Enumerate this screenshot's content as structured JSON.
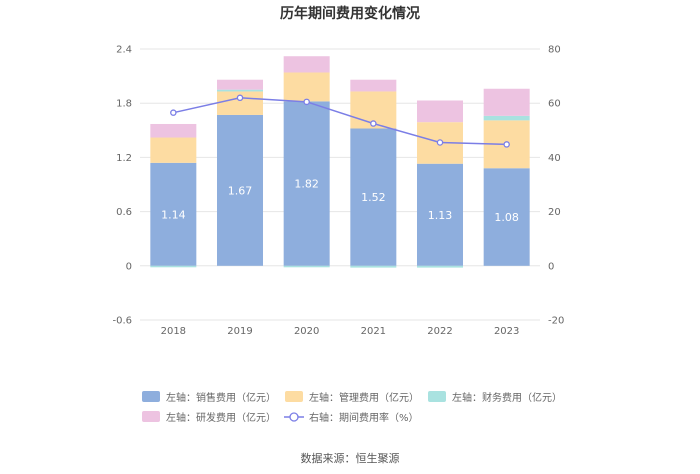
{
  "chart_data": {
    "type": "bar",
    "title": "历年期间费用变化情况",
    "categories": [
      "2018",
      "2019",
      "2020",
      "2021",
      "2022",
      "2023"
    ],
    "left_axis": {
      "ylim": [
        -0.6,
        2.4
      ],
      "ticks": [
        "2.4",
        "1.8",
        "1.2",
        "0.6",
        "0",
        "-0.6"
      ],
      "tick_values": [
        2.4,
        1.8,
        1.2,
        0.6,
        0,
        -0.6
      ]
    },
    "right_axis": {
      "ylim": [
        -20,
        80
      ],
      "ticks": [
        "80",
        "60",
        "40",
        "20",
        "0",
        "-20"
      ],
      "tick_values": [
        80,
        60,
        40,
        20,
        0,
        -20
      ]
    },
    "series": [
      {
        "name": "左轴：销售费用（亿元）",
        "type": "bar",
        "axis": "left",
        "color": "#8eaedd",
        "values": [
          1.14,
          1.67,
          1.82,
          1.52,
          1.13,
          1.08
        ],
        "labels": [
          "1.14",
          "1.67",
          "1.82",
          "1.52",
          "1.13",
          "1.08"
        ]
      },
      {
        "name": "左轴：管理费用（亿元）",
        "type": "bar",
        "axis": "left",
        "color": "#fddca2",
        "values": [
          0.28,
          0.26,
          0.32,
          0.41,
          0.46,
          0.53
        ]
      },
      {
        "name": "左轴：财务费用（亿元）",
        "type": "bar",
        "axis": "left",
        "color": "#a9e2e0",
        "values": [
          -0.005,
          0.02,
          -0.01,
          -0.02,
          -0.02,
          0.05
        ]
      },
      {
        "name": "左轴：研发费用（亿元）",
        "type": "bar",
        "axis": "left",
        "color": "#edc3e1",
        "values": [
          0.15,
          0.11,
          0.18,
          0.13,
          0.24,
          0.3
        ]
      },
      {
        "name": "右轴：期间费用率（%）",
        "type": "line",
        "axis": "right",
        "color": "#7b7ee6",
        "values": [
          56.5,
          62.0,
          60.5,
          52.5,
          45.5,
          44.8
        ]
      }
    ],
    "grid": true,
    "legend_position": "bottom"
  },
  "source": "数据来源：恒生聚源"
}
